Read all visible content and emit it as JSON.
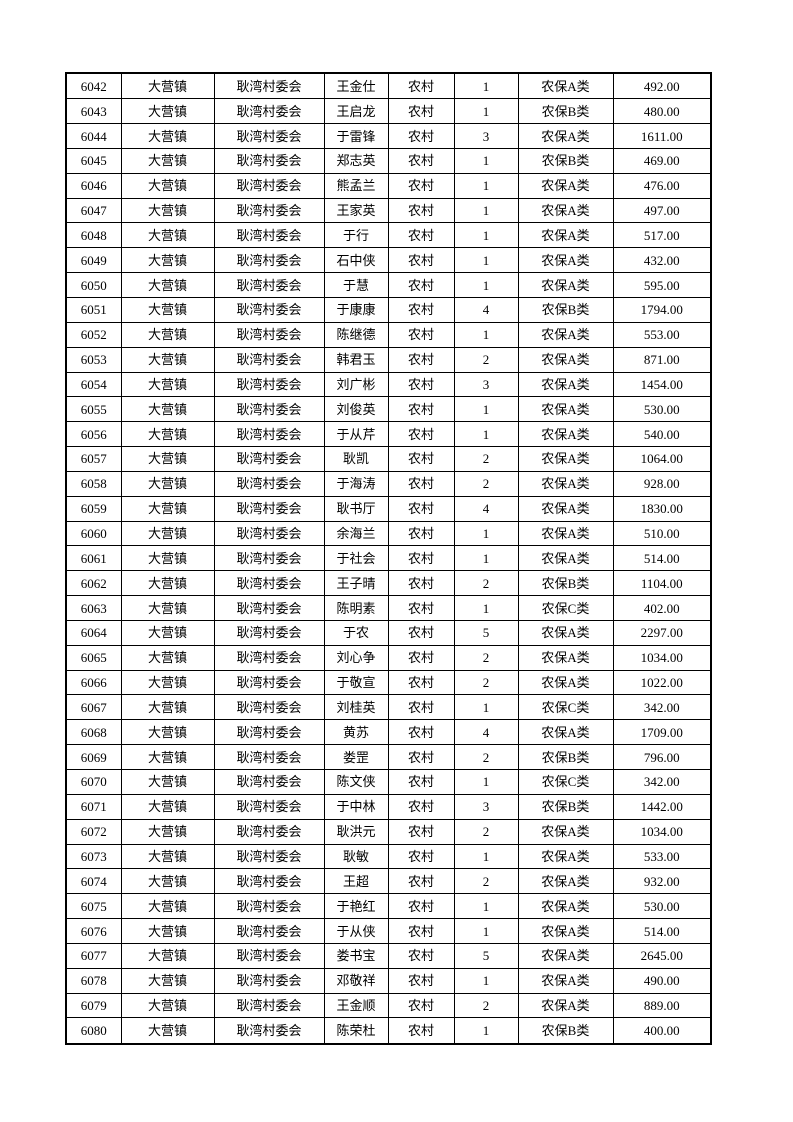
{
  "colors": {
    "page_background": "#ffffff",
    "table_border": "#000000",
    "text": "#000000"
  },
  "table": {
    "column_names": [
      "serial-number",
      "town",
      "village-committee",
      "person-name",
      "residence-type",
      "person-count",
      "insurance-category",
      "amount"
    ],
    "rows": [
      [
        "6042",
        "大营镇",
        "耿湾村委会",
        "王金仕",
        "农村",
        "1",
        "农保A类",
        "492.00"
      ],
      [
        "6043",
        "大营镇",
        "耿湾村委会",
        "王启龙",
        "农村",
        "1",
        "农保B类",
        "480.00"
      ],
      [
        "6044",
        "大营镇",
        "耿湾村委会",
        "于雷锋",
        "农村",
        "3",
        "农保A类",
        "1611.00"
      ],
      [
        "6045",
        "大营镇",
        "耿湾村委会",
        "郑志英",
        "农村",
        "1",
        "农保B类",
        "469.00"
      ],
      [
        "6046",
        "大营镇",
        "耿湾村委会",
        "熊孟兰",
        "农村",
        "1",
        "农保A类",
        "476.00"
      ],
      [
        "6047",
        "大营镇",
        "耿湾村委会",
        "王家英",
        "农村",
        "1",
        "农保A类",
        "497.00"
      ],
      [
        "6048",
        "大营镇",
        "耿湾村委会",
        "于行",
        "农村",
        "1",
        "农保A类",
        "517.00"
      ],
      [
        "6049",
        "大营镇",
        "耿湾村委会",
        "石中侠",
        "农村",
        "1",
        "农保A类",
        "432.00"
      ],
      [
        "6050",
        "大营镇",
        "耿湾村委会",
        "于慧",
        "农村",
        "1",
        "农保A类",
        "595.00"
      ],
      [
        "6051",
        "大营镇",
        "耿湾村委会",
        "于康康",
        "农村",
        "4",
        "农保B类",
        "1794.00"
      ],
      [
        "6052",
        "大营镇",
        "耿湾村委会",
        "陈继德",
        "农村",
        "1",
        "农保A类",
        "553.00"
      ],
      [
        "6053",
        "大营镇",
        "耿湾村委会",
        "韩君玉",
        "农村",
        "2",
        "农保A类",
        "871.00"
      ],
      [
        "6054",
        "大营镇",
        "耿湾村委会",
        "刘广彬",
        "农村",
        "3",
        "农保A类",
        "1454.00"
      ],
      [
        "6055",
        "大营镇",
        "耿湾村委会",
        "刘俊英",
        "农村",
        "1",
        "农保A类",
        "530.00"
      ],
      [
        "6056",
        "大营镇",
        "耿湾村委会",
        "于从芹",
        "农村",
        "1",
        "农保A类",
        "540.00"
      ],
      [
        "6057",
        "大营镇",
        "耿湾村委会",
        "耿凯",
        "农村",
        "2",
        "农保A类",
        "1064.00"
      ],
      [
        "6058",
        "大营镇",
        "耿湾村委会",
        "于海涛",
        "农村",
        "2",
        "农保A类",
        "928.00"
      ],
      [
        "6059",
        "大营镇",
        "耿湾村委会",
        "耿书厅",
        "农村",
        "4",
        "农保A类",
        "1830.00"
      ],
      [
        "6060",
        "大营镇",
        "耿湾村委会",
        "余海兰",
        "农村",
        "1",
        "农保A类",
        "510.00"
      ],
      [
        "6061",
        "大营镇",
        "耿湾村委会",
        "于社会",
        "农村",
        "1",
        "农保A类",
        "514.00"
      ],
      [
        "6062",
        "大营镇",
        "耿湾村委会",
        "王子晴",
        "农村",
        "2",
        "农保B类",
        "1104.00"
      ],
      [
        "6063",
        "大营镇",
        "耿湾村委会",
        "陈明素",
        "农村",
        "1",
        "农保C类",
        "402.00"
      ],
      [
        "6064",
        "大营镇",
        "耿湾村委会",
        "于农",
        "农村",
        "5",
        "农保A类",
        "2297.00"
      ],
      [
        "6065",
        "大营镇",
        "耿湾村委会",
        "刘心争",
        "农村",
        "2",
        "农保A类",
        "1034.00"
      ],
      [
        "6066",
        "大营镇",
        "耿湾村委会",
        "于敬宣",
        "农村",
        "2",
        "农保A类",
        "1022.00"
      ],
      [
        "6067",
        "大营镇",
        "耿湾村委会",
        "刘桂英",
        "农村",
        "1",
        "农保C类",
        "342.00"
      ],
      [
        "6068",
        "大营镇",
        "耿湾村委会",
        "黄苏",
        "农村",
        "4",
        "农保A类",
        "1709.00"
      ],
      [
        "6069",
        "大营镇",
        "耿湾村委会",
        "娄罡",
        "农村",
        "2",
        "农保B类",
        "796.00"
      ],
      [
        "6070",
        "大营镇",
        "耿湾村委会",
        "陈文侠",
        "农村",
        "1",
        "农保C类",
        "342.00"
      ],
      [
        "6071",
        "大营镇",
        "耿湾村委会",
        "于中林",
        "农村",
        "3",
        "农保B类",
        "1442.00"
      ],
      [
        "6072",
        "大营镇",
        "耿湾村委会",
        "耿洪元",
        "农村",
        "2",
        "农保A类",
        "1034.00"
      ],
      [
        "6073",
        "大营镇",
        "耿湾村委会",
        "耿敏",
        "农村",
        "1",
        "农保A类",
        "533.00"
      ],
      [
        "6074",
        "大营镇",
        "耿湾村委会",
        "王超",
        "农村",
        "2",
        "农保A类",
        "932.00"
      ],
      [
        "6075",
        "大营镇",
        "耿湾村委会",
        "于艳红",
        "农村",
        "1",
        "农保A类",
        "530.00"
      ],
      [
        "6076",
        "大营镇",
        "耿湾村委会",
        "于从侠",
        "农村",
        "1",
        "农保A类",
        "514.00"
      ],
      [
        "6077",
        "大营镇",
        "耿湾村委会",
        "娄书宝",
        "农村",
        "5",
        "农保A类",
        "2645.00"
      ],
      [
        "6078",
        "大营镇",
        "耿湾村委会",
        "邓敬祥",
        "农村",
        "1",
        "农保A类",
        "490.00"
      ],
      [
        "6079",
        "大营镇",
        "耿湾村委会",
        "王金顺",
        "农村",
        "2",
        "农保A类",
        "889.00"
      ],
      [
        "6080",
        "大营镇",
        "耿湾村委会",
        "陈荣杜",
        "农村",
        "1",
        "农保B类",
        "400.00"
      ]
    ]
  }
}
